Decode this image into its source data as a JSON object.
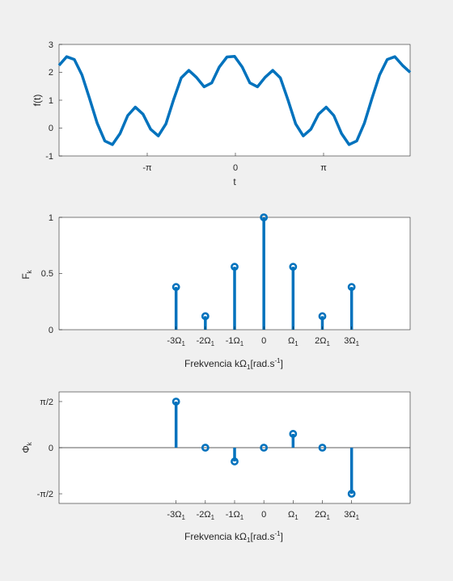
{
  "colors": {
    "series": "#0072bd",
    "axes": "#262626",
    "plot_bg": "#ffffff",
    "figure_bg": "#f0f0f0"
  },
  "chart_data": [
    {
      "type": "line",
      "xlabel": "t",
      "ylabel": "f(t)",
      "xlim": [
        -4.6,
        4.6
      ],
      "ylim": [
        -1,
        3
      ],
      "xticks": [
        {
          "value": -3.14159,
          "label": "-π"
        },
        {
          "value": 0,
          "label": "0"
        },
        {
          "value": 3.14159,
          "label": "π"
        }
      ],
      "yticks": [
        "-1",
        "0",
        "1",
        "2",
        "3"
      ],
      "series": [
        {
          "x": [
            -4.6,
            -4.4,
            -4.2,
            -4.0,
            -3.8,
            -3.6,
            -3.4,
            -3.2,
            -3.0,
            -2.8,
            -2.6,
            -2.4,
            -2.2,
            -2.0,
            -1.8,
            -1.6,
            -1.4,
            -1.2,
            -1.0,
            -0.8,
            -0.6,
            -0.4,
            -0.2,
            0.0,
            0.2,
            0.4,
            0.6,
            0.8,
            1.0,
            1.2,
            1.4,
            1.6,
            1.8,
            2.0,
            2.2,
            2.4,
            2.6,
            2.8,
            3.0,
            3.2,
            3.4,
            3.6,
            3.8,
            4.0,
            4.2,
            4.4,
            4.6
          ],
          "y": [
            2.25,
            2.56,
            2.46,
            1.91,
            1.06,
            0.17,
            -0.46,
            -0.59,
            -0.19,
            0.45,
            0.75,
            0.5,
            -0.04,
            -0.28,
            0.15,
            1.01,
            1.8,
            2.07,
            1.82,
            1.48,
            1.62,
            2.19,
            2.55,
            2.57,
            2.19,
            1.62,
            1.48,
            1.82,
            2.07,
            1.8,
            1.01,
            0.15,
            -0.28,
            -0.04,
            0.5,
            0.75,
            0.45,
            -0.19,
            -0.59,
            -0.46,
            0.17,
            1.06,
            1.91,
            2.46,
            2.56,
            2.25,
            2.0
          ]
        }
      ]
    },
    {
      "type": "stem",
      "xlabel": "Frekvencia kΩ1[rad.s-1]",
      "ylabel": "Fk",
      "xlim": [
        -7,
        5
      ],
      "ylim": [
        0,
        1
      ],
      "yticks": [
        "0",
        "0.5",
        "1"
      ],
      "categories": [
        "-3Ω1",
        "-2Ω1",
        "-1Ω1",
        "0",
        "Ω1",
        "2Ω1",
        "3Ω1"
      ],
      "x": [
        -3,
        -2,
        -1,
        0,
        1,
        2,
        3
      ],
      "values": [
        0.38,
        0.12,
        0.56,
        1.0,
        0.56,
        0.12,
        0.38
      ]
    },
    {
      "type": "stem",
      "xlabel": "Frekvencia kΩ1[rad.s-1]",
      "ylabel": "Φk",
      "xlim": [
        -7,
        5
      ],
      "ylim": [
        -1.9,
        1.9
      ],
      "yticks": [
        {
          "value": 1.5708,
          "label": "π/2"
        },
        {
          "value": 0,
          "label": "0"
        },
        {
          "value": -1.5708,
          "label": "-π/2"
        }
      ],
      "categories": [
        "-3Ω1",
        "-2Ω1",
        "-1Ω1",
        "0",
        "Ω1",
        "2Ω1",
        "3Ω1"
      ],
      "x": [
        -3,
        -2,
        -1,
        0,
        1,
        2,
        3
      ],
      "values": [
        1.57,
        0.0,
        -0.47,
        0.0,
        0.47,
        0.0,
        -1.57
      ]
    }
  ]
}
